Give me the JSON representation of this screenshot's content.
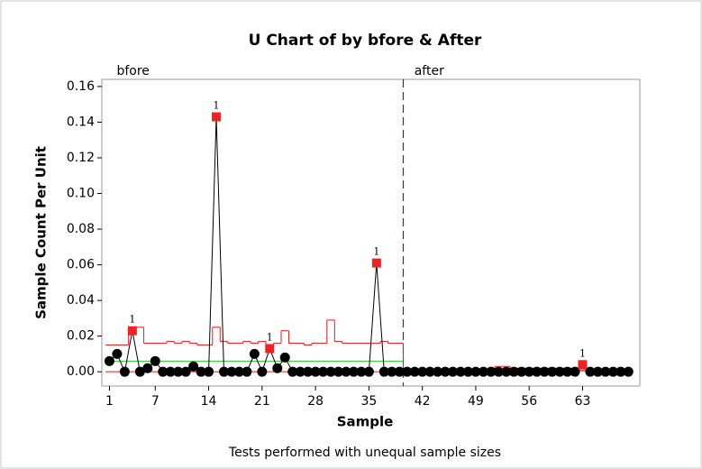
{
  "chart_data": {
    "type": "u-chart",
    "title": "U Chart of  by bfore & After",
    "x_label": "Sample",
    "y_label": "Sample Count Per Unit",
    "footnote": "Tests performed with unequal sample sizes",
    "stages": [
      {
        "label": "bfore",
        "start": 1
      },
      {
        "label": "after",
        "start": 40
      }
    ],
    "stage_split": 39.5,
    "xlim": [
      0,
      70.5
    ],
    "ylim": [
      -0.008,
      0.164
    ],
    "xticks": [
      1,
      7,
      14,
      21,
      28,
      35,
      42,
      49,
      56,
      63
    ],
    "yticks": [
      {
        "value": 0,
        "label": "0.00"
      },
      {
        "value": 0.02,
        "label": "0.02"
      },
      {
        "value": 0.04,
        "label": "0.04"
      },
      {
        "value": 0.06,
        "label": "0.06"
      },
      {
        "value": 0.08,
        "label": "0.08"
      },
      {
        "value": 0.1,
        "label": "0.10"
      },
      {
        "value": 0.12,
        "label": "0.12"
      },
      {
        "value": 0.14,
        "label": "0.14"
      },
      {
        "value": 0.16,
        "label": "0.16"
      }
    ],
    "x": [
      1,
      2,
      3,
      4,
      5,
      6,
      7,
      8,
      9,
      10,
      11,
      12,
      13,
      14,
      15,
      16,
      17,
      18,
      19,
      20,
      21,
      22,
      23,
      24,
      25,
      26,
      27,
      28,
      29,
      30,
      31,
      32,
      33,
      34,
      35,
      36,
      37,
      38,
      39,
      40,
      41,
      42,
      43,
      44,
      45,
      46,
      47,
      48,
      49,
      50,
      51,
      52,
      53,
      54,
      55,
      56,
      57,
      58,
      59,
      60,
      61,
      62,
      63,
      64,
      65,
      66,
      67,
      68,
      69
    ],
    "series": [
      {
        "name": "u",
        "color": "#000000",
        "values": [
          0.006,
          0.01,
          0,
          0.023,
          0,
          0.002,
          0.006,
          0,
          0,
          0,
          0,
          0.003,
          0,
          0,
          0.143,
          0,
          0,
          0,
          0,
          0.01,
          0,
          0.013,
          0.002,
          0.008,
          0,
          0,
          0,
          0,
          0,
          0,
          0,
          0,
          0,
          0,
          0,
          0.061,
          0,
          0,
          0,
          0,
          0,
          0,
          0,
          0,
          0,
          0,
          0,
          0,
          0,
          0,
          0,
          0,
          0,
          0,
          0,
          0,
          0,
          0,
          0,
          0,
          0,
          0,
          0.004,
          0,
          0,
          0,
          0,
          0,
          0
        ]
      },
      {
        "name": "UCL",
        "color": "#e8191c",
        "values": [
          0.015,
          0.015,
          0.015,
          0.025,
          0.025,
          0.016,
          0.016,
          0.016,
          0.017,
          0.016,
          0.017,
          0.016,
          0.015,
          0.015,
          0.025,
          0.017,
          0.016,
          0.016,
          0.017,
          0.016,
          0.017,
          0.015,
          0.016,
          0.023,
          0.016,
          0.016,
          0.015,
          0.016,
          0.016,
          0.029,
          0.017,
          0.016,
          0.016,
          0.016,
          0.016,
          0.016,
          0.017,
          0.016,
          0.016,
          0.001,
          0.001,
          0.001,
          0.001,
          0.001,
          0.001,
          0.001,
          0.001,
          0.001,
          0.001,
          0.001,
          0.001,
          0.003,
          0.003,
          0.002,
          0.002,
          0.002,
          0.002,
          0.002,
          0.002,
          0.002,
          0.002,
          0.002,
          0.001,
          0.001,
          0.001,
          0.001,
          0.001,
          0.001,
          0.001
        ]
      }
    ],
    "center": {
      "color": "#22cc22",
      "segments": [
        {
          "from": 1,
          "to": 39,
          "value": 0.006
        },
        {
          "from": 40,
          "to": 69,
          "value": 0.0004
        }
      ]
    },
    "lcl": {
      "color": "#e8191c",
      "segments": [
        {
          "from": 1,
          "to": 39,
          "value": 0
        }
      ]
    },
    "failure_color": "#ee2222",
    "failures": [
      {
        "sample": 4,
        "label": "1"
      },
      {
        "sample": 15,
        "label": "1"
      },
      {
        "sample": 22,
        "label": "1"
      },
      {
        "sample": 36,
        "label": "1"
      },
      {
        "sample": 63,
        "label": "1"
      }
    ],
    "split_color": "#2222cc"
  }
}
